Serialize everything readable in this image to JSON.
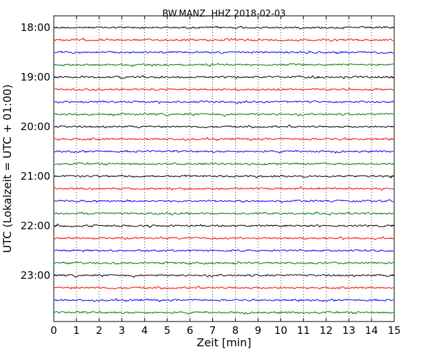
{
  "chart_data": {
    "type": "line",
    "title": "BW.MANZ..HHZ 2018-02-03",
    "xlabel": "Zeit  [min]",
    "ylabel": "UTC (Lokalzeit = UTC + 01:00)",
    "xlim": [
      0,
      15
    ],
    "x_ticks": [
      "0",
      "1",
      "2",
      "3",
      "4",
      "5",
      "6",
      "7",
      "8",
      "9",
      "10",
      "11",
      "12",
      "13",
      "14",
      "15"
    ],
    "y_ticks": [
      "18:00",
      "19:00",
      "20:00",
      "21:00",
      "22:00",
      "23:00"
    ],
    "grid": "vertical dotted at each minute",
    "trace_colors": [
      "#000000",
      "#ff0000",
      "#0000ff",
      "#007700"
    ],
    "traces": [
      {
        "start": "18:00",
        "color": "#000000"
      },
      {
        "start": "18:15",
        "color": "#ff0000"
      },
      {
        "start": "18:30",
        "color": "#0000ff"
      },
      {
        "start": "18:45",
        "color": "#007700"
      },
      {
        "start": "19:00",
        "color": "#000000"
      },
      {
        "start": "19:15",
        "color": "#ff0000"
      },
      {
        "start": "19:30",
        "color": "#0000ff"
      },
      {
        "start": "19:45",
        "color": "#007700"
      },
      {
        "start": "20:00",
        "color": "#000000"
      },
      {
        "start": "20:15",
        "color": "#ff0000"
      },
      {
        "start": "20:30",
        "color": "#0000ff"
      },
      {
        "start": "20:45",
        "color": "#007700"
      },
      {
        "start": "21:00",
        "color": "#000000"
      },
      {
        "start": "21:15",
        "color": "#ff0000"
      },
      {
        "start": "21:30",
        "color": "#0000ff"
      },
      {
        "start": "21:45",
        "color": "#007700"
      },
      {
        "start": "22:00",
        "color": "#000000"
      },
      {
        "start": "22:15",
        "color": "#ff0000"
      },
      {
        "start": "22:30",
        "color": "#0000ff"
      },
      {
        "start": "22:45",
        "color": "#007700"
      },
      {
        "start": "23:00",
        "color": "#000000"
      },
      {
        "start": "23:15",
        "color": "#ff0000"
      },
      {
        "start": "23:30",
        "color": "#0000ff"
      },
      {
        "start": "23:45",
        "color": "#007700"
      }
    ]
  }
}
